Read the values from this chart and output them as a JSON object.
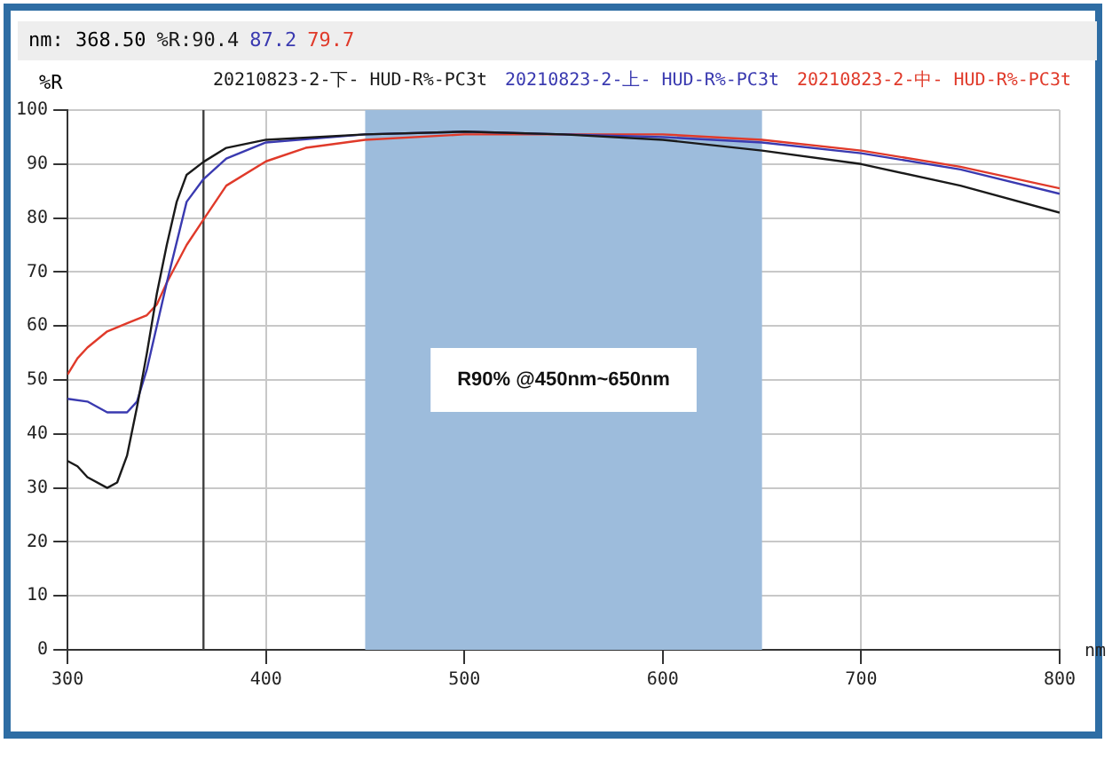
{
  "chart_data": {
    "type": "line",
    "xlabel": "nm",
    "ylabel": "%R",
    "annotations": [
      "nm: 368.50",
      "%R:90.4",
      "87.2",
      "79.7"
    ],
    "xlim": [
      300,
      800
    ],
    "xticks": [
      300,
      400,
      500,
      600,
      700,
      800
    ],
    "ylim": [
      0,
      100
    ],
    "yticks": [
      0,
      10,
      20,
      30,
      40,
      50,
      60,
      70,
      80,
      90,
      100
    ],
    "grid": true,
    "legend": "top",
    "marker": "none",
    "line_style": "solid",
    "ref_lines": [
      {
        "axis": "x",
        "value": 368.5,
        "color": "#404040"
      }
    ],
    "bands": [
      {
        "axis": "x",
        "from": 450,
        "to": 650,
        "label": "R90% @450nm~650nm",
        "color": "#9dbcdc"
      }
    ],
    "series": [
      {
        "name": "20210823-2-下- HUD-R%-PC3t",
        "color": "#1a1a1a",
        "x": [
          300,
          305,
          310,
          320,
          325,
          330,
          335,
          340,
          345,
          350,
          355,
          360,
          368.5,
          380,
          400,
          450,
          500,
          550,
          600,
          650,
          700,
          750,
          800
        ],
        "values": [
          35,
          34,
          32,
          30,
          31,
          36,
          45,
          55,
          66,
          75,
          83,
          88,
          90.4,
          93,
          94.5,
          95.5,
          96,
          95.5,
          94.5,
          92.5,
          90,
          86,
          81
        ]
      },
      {
        "name": "20210823-2-上- HUD-R%-PC3t",
        "color": "#3a3ab0",
        "x": [
          300,
          310,
          320,
          330,
          335,
          340,
          350,
          360,
          368.5,
          380,
          400,
          450,
          500,
          550,
          600,
          650,
          700,
          750,
          800
        ],
        "values": [
          46.5,
          46,
          44,
          44,
          46,
          52,
          68,
          83,
          87.2,
          91,
          94,
          95.5,
          96,
          95.5,
          95,
          94,
          92,
          89,
          84.5
        ]
      },
      {
        "name": "20210823-2-中- HUD-R%-PC3t",
        "color": "#e03a2a",
        "x": [
          300,
          305,
          310,
          320,
          330,
          340,
          345,
          350,
          360,
          368.5,
          380,
          400,
          420,
          450,
          500,
          550,
          600,
          650,
          700,
          750,
          800
        ],
        "values": [
          51,
          54,
          56,
          59,
          60.5,
          62,
          64,
          68,
          75,
          79.7,
          86,
          90.5,
          93,
          94.5,
          95.5,
          95.5,
          95.5,
          94.5,
          92.5,
          89.5,
          85.5
        ]
      }
    ]
  }
}
